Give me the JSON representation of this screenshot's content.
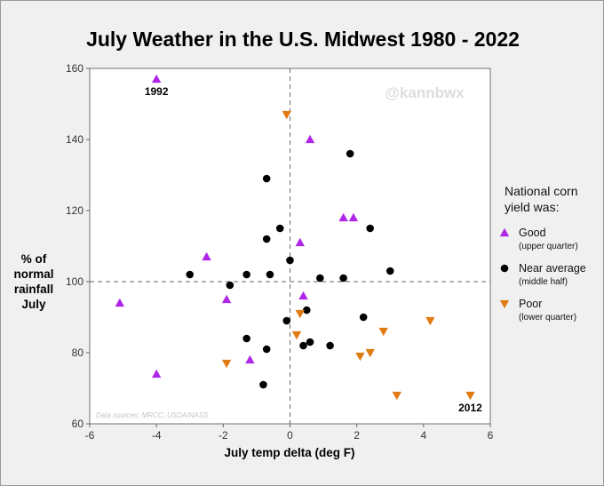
{
  "chart_data": {
    "type": "scatter",
    "title": "July Weather in the U.S. Midwest 1980 - 2022",
    "xlabel": "July temp delta (deg F)",
    "ylabel": [
      "% of",
      "normal",
      "rainfall",
      "July"
    ],
    "xlim": [
      -6,
      6
    ],
    "ylim": [
      60,
      160
    ],
    "xticks": [
      -6,
      -4,
      -2,
      0,
      2,
      4,
      6
    ],
    "yticks": [
      60,
      80,
      100,
      120,
      140,
      160
    ],
    "reference_lines": {
      "x": 0,
      "y": 100
    },
    "legend": {
      "title": [
        "National corn",
        "yield was:"
      ],
      "position": "right"
    },
    "series": [
      {
        "name": "Good",
        "note": "(upper quarter)",
        "marker": "triangle-up",
        "color": "#b026e8",
        "points": [
          [
            -4.0,
            157
          ],
          [
            -5.1,
            94
          ],
          [
            -4.0,
            74
          ],
          [
            -2.5,
            107
          ],
          [
            -1.9,
            95
          ],
          [
            -1.2,
            78
          ],
          [
            0.3,
            111
          ],
          [
            0.4,
            96
          ],
          [
            0.6,
            140
          ],
          [
            1.6,
            118
          ],
          [
            1.9,
            118
          ]
        ]
      },
      {
        "name": "Near average",
        "note": "(middle half)",
        "marker": "circle",
        "color": "#000000",
        "points": [
          [
            -3.0,
            102
          ],
          [
            -1.8,
            99
          ],
          [
            -1.3,
            102
          ],
          [
            -1.3,
            84
          ],
          [
            -0.7,
            129
          ],
          [
            -0.7,
            112
          ],
          [
            -0.6,
            102
          ],
          [
            -0.3,
            115
          ],
          [
            -0.7,
            81
          ],
          [
            -0.8,
            71
          ],
          [
            -0.1,
            89
          ],
          [
            0.0,
            106
          ],
          [
            0.5,
            92
          ],
          [
            0.4,
            82
          ],
          [
            0.6,
            83
          ],
          [
            0.9,
            101
          ],
          [
            1.2,
            82
          ],
          [
            1.6,
            101
          ],
          [
            1.8,
            136
          ],
          [
            2.2,
            90
          ],
          [
            2.4,
            115
          ],
          [
            3.0,
            103
          ]
        ]
      },
      {
        "name": "Poor",
        "note": "(lower quarter)",
        "marker": "triangle-down",
        "color": "#e07b14",
        "points": [
          [
            -0.1,
            147
          ],
          [
            -1.9,
            77
          ],
          [
            0.2,
            85
          ],
          [
            0.3,
            91
          ],
          [
            2.1,
            79
          ],
          [
            2.4,
            80
          ],
          [
            2.8,
            86
          ],
          [
            3.2,
            68
          ],
          [
            4.2,
            89
          ],
          [
            5.4,
            68
          ]
        ]
      }
    ],
    "annotations": [
      {
        "text": "1992",
        "x": -4.0,
        "y": 157
      },
      {
        "text": "2012",
        "x": 5.4,
        "y": 68
      }
    ]
  },
  "watermark": "@kannbwx",
  "source_note": "Data sources: MRCC; USDA/NASS"
}
